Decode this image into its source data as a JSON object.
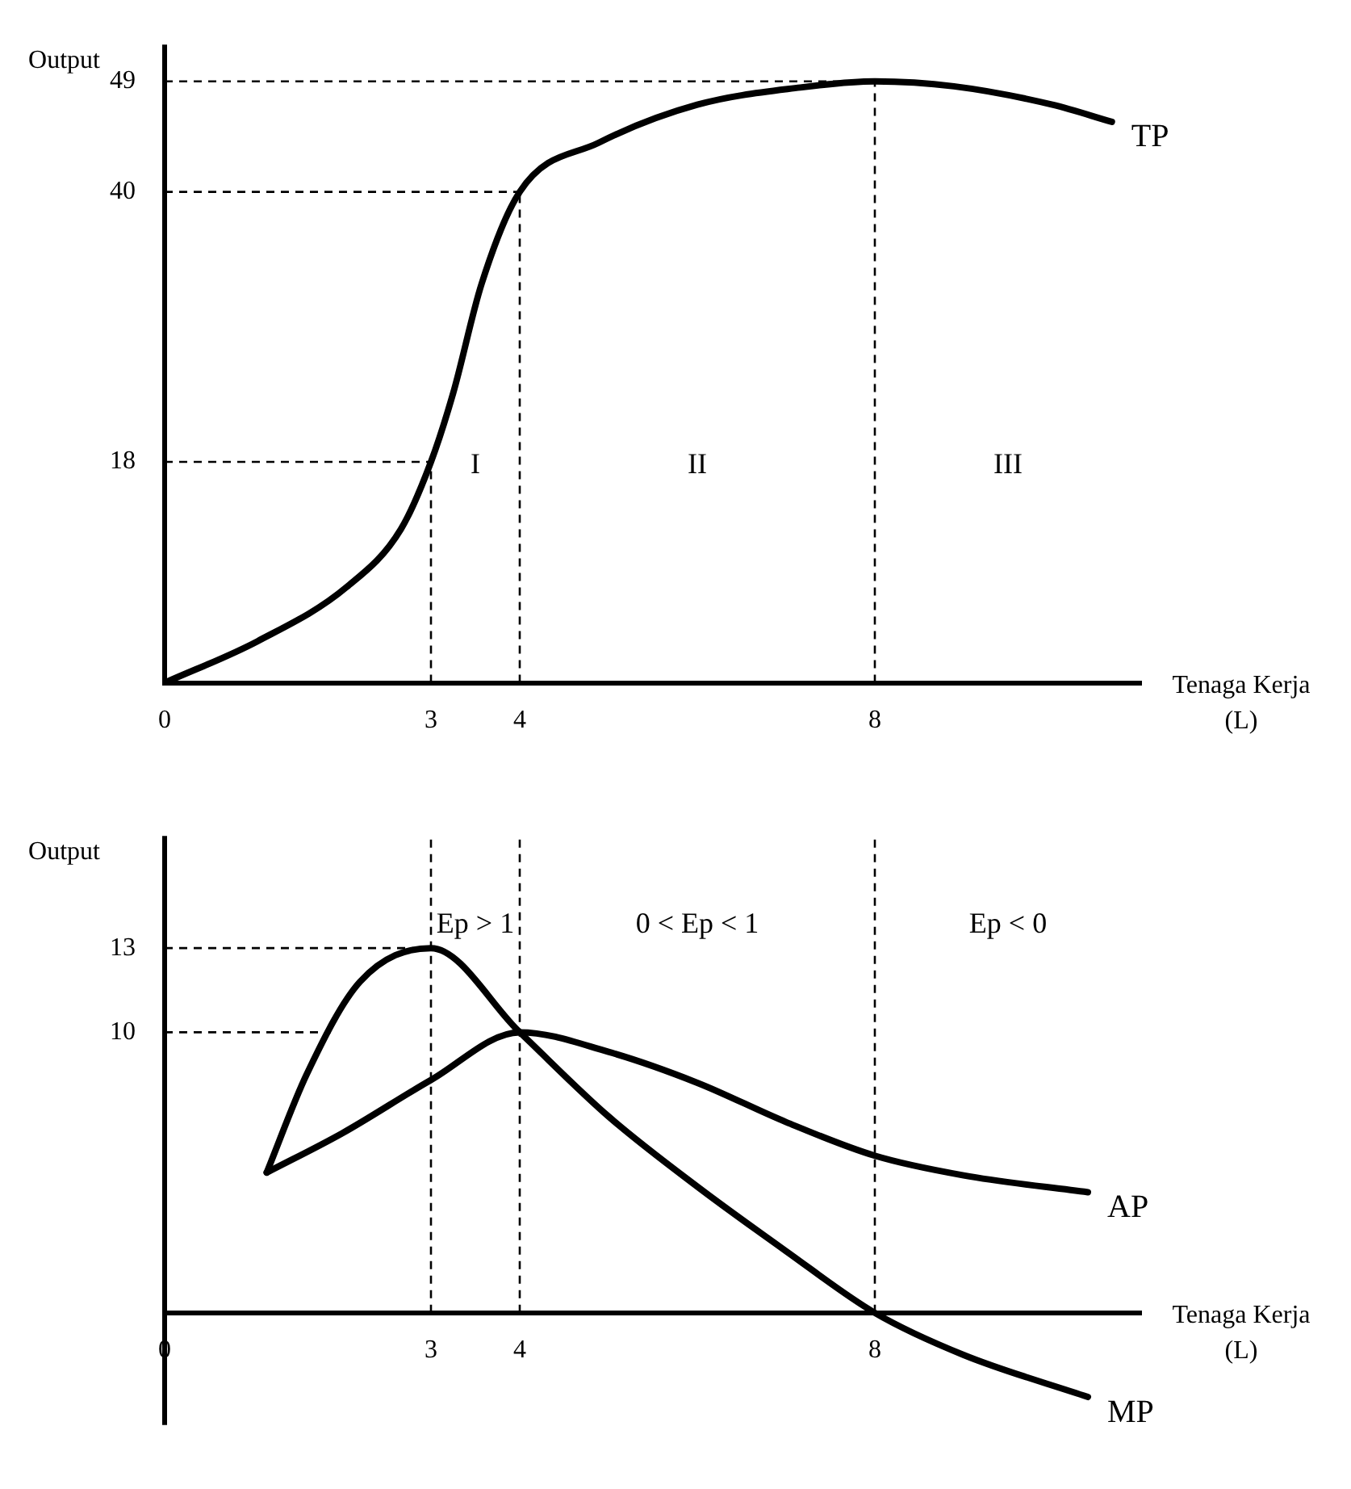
{
  "chart_data": [
    {
      "type": "line",
      "ylabel": "Output",
      "xlabel": "Tenaga Kerja (L)",
      "legend": false,
      "grid": false,
      "marker": "none",
      "line_style": "solid",
      "xlim": [
        0,
        11
      ],
      "xticks": [
        0,
        3,
        4,
        8
      ],
      "ylim": [
        0,
        52
      ],
      "yticks": [
        18,
        40,
        49
      ],
      "series": [
        {
          "name": "TP",
          "color": "#000000",
          "x": [
            0,
            1.05,
            2.05,
            2.66,
            3,
            3.25,
            3.57,
            4,
            4.89,
            6,
            7.16,
            8,
            8.89,
            10,
            10.67
          ],
          "values": [
            0,
            3.4,
            7.8,
            12.5,
            18,
            23.6,
            32.5,
            40,
            44,
            47.1,
            48.5,
            49,
            48.6,
            47.1,
            45.7
          ]
        }
      ],
      "ref_lines": [
        {
          "axis": "y",
          "value": 18,
          "line_style": "dashed",
          "color": "#000000"
        },
        {
          "axis": "y",
          "value": 40,
          "line_style": "dashed",
          "color": "#000000"
        },
        {
          "axis": "y",
          "value": 49,
          "line_style": "dashed",
          "color": "#000000"
        },
        {
          "axis": "x",
          "value": 3,
          "line_style": "dashed",
          "color": "#000000"
        },
        {
          "axis": "x",
          "value": 4,
          "line_style": "dashed",
          "color": "#000000"
        },
        {
          "axis": "x",
          "value": 8,
          "line_style": "dashed",
          "color": "#000000"
        }
      ],
      "annotations": [
        "I",
        "II",
        "III"
      ]
    },
    {
      "type": "line",
      "ylabel": "Output",
      "xlabel": "Tenaga Kerja (L)",
      "legend": false,
      "grid": false,
      "marker": "none",
      "line_style": "solid",
      "xlim": [
        0,
        11
      ],
      "xticks": [
        0,
        3,
        4,
        8
      ],
      "ylim": [
        -4,
        17
      ],
      "yticks": [
        10,
        13
      ],
      "series": [
        {
          "name": "AP",
          "color": "#000000",
          "x": [
            1.15,
            2,
            3,
            4,
            5,
            6,
            7,
            8,
            9,
            10.4
          ],
          "values": [
            5,
            6.4,
            8.3,
            10,
            9.3,
            8.2,
            6.8,
            5.6,
            4.9,
            4.3
          ]
        },
        {
          "name": "MP",
          "color": "#000000",
          "x": [
            1.15,
            1.6,
            2.2,
            3,
            4,
            5,
            6,
            7,
            8,
            9,
            10.4
          ],
          "values": [
            5,
            8.5,
            11.8,
            13,
            10,
            7,
            4.5,
            2.2,
            0,
            -1.5,
            -3
          ]
        }
      ],
      "ref_lines": [
        {
          "axis": "y",
          "value": 13,
          "line_style": "dashed",
          "color": "#000000"
        },
        {
          "axis": "y",
          "value": 10,
          "line_style": "dashed",
          "color": "#000000"
        },
        {
          "axis": "x",
          "value": 3,
          "line_style": "dashed",
          "color": "#000000"
        },
        {
          "axis": "x",
          "value": 4,
          "line_style": "dashed",
          "color": "#000000"
        },
        {
          "axis": "x",
          "value": 8,
          "line_style": "dashed",
          "color": "#000000"
        }
      ],
      "annotations": [
        "Ep > 1",
        "0 < Ep < 1",
        "Ep < 0"
      ]
    }
  ]
}
